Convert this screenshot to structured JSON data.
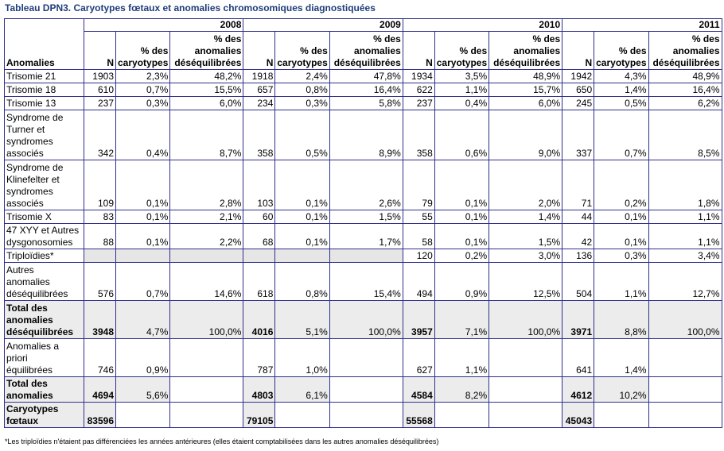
{
  "title": "Tableau DPN3. Caryotypes fœtaux et anomalies chromosomiques diagnostiquées",
  "header": {
    "anomalies": "Anomalies",
    "years": [
      "2008",
      "2009",
      "2010",
      "2011"
    ],
    "n": "N",
    "pct_caryo": [
      "% des",
      "caryotypes"
    ],
    "pct_anom": [
      "% des",
      "anomalies",
      "déséquilibrées"
    ]
  },
  "rows": [
    {
      "label": [
        "Trisomie 21"
      ],
      "bold": false,
      "cells": [
        [
          "1903",
          "2,3%",
          "48,2%"
        ],
        [
          "1918",
          "2,4%",
          "47,8%"
        ],
        [
          "1934",
          "3,5%",
          "48,9%"
        ],
        [
          "1942",
          "4,3%",
          "48,9%"
        ]
      ]
    },
    {
      "label": [
        "Trisomie 18"
      ],
      "bold": false,
      "cells": [
        [
          "610",
          "0,7%",
          "15,5%"
        ],
        [
          "657",
          "0,8%",
          "16,4%"
        ],
        [
          "622",
          "1,1%",
          "15,7%"
        ],
        [
          "650",
          "1,4%",
          "16,4%"
        ]
      ]
    },
    {
      "label": [
        "Trisomie 13"
      ],
      "bold": false,
      "cells": [
        [
          "237",
          "0,3%",
          "6,0%"
        ],
        [
          "234",
          "0,3%",
          "5,8%"
        ],
        [
          "237",
          "0,4%",
          "6,0%"
        ],
        [
          "245",
          "0,5%",
          "6,2%"
        ]
      ]
    },
    {
      "label": [
        "Syndrome de",
        "Turner et",
        "syndromes",
        "associés"
      ],
      "bold": false,
      "cells": [
        [
          "342",
          "0,4%",
          "8,7%"
        ],
        [
          "358",
          "0,5%",
          "8,9%"
        ],
        [
          "358",
          "0,6%",
          "9,0%"
        ],
        [
          "337",
          "0,7%",
          "8,5%"
        ]
      ]
    },
    {
      "label": [
        "Syndrome de",
        "Klinefelter et",
        "syndromes",
        "associés"
      ],
      "bold": false,
      "cells": [
        [
          "109",
          "0,1%",
          "2,8%"
        ],
        [
          "103",
          "0,1%",
          "2,6%"
        ],
        [
          "79",
          "0,1%",
          "2,0%"
        ],
        [
          "71",
          "0,2%",
          "1,8%"
        ]
      ]
    },
    {
      "label": [
        "Trisomie X"
      ],
      "bold": false,
      "cells": [
        [
          "83",
          "0,1%",
          "2,1%"
        ],
        [
          "60",
          "0,1%",
          "1,5%"
        ],
        [
          "55",
          "0,1%",
          "1,4%"
        ],
        [
          "44",
          "0,1%",
          "1,1%"
        ]
      ]
    },
    {
      "label": [
        "47 XYY et Autres",
        "dysgonosomies"
      ],
      "bold": false,
      "cells": [
        [
          "88",
          "0,1%",
          "2,2%"
        ],
        [
          "68",
          "0,1%",
          "1,7%"
        ],
        [
          "58",
          "0,1%",
          "1,5%"
        ],
        [
          "42",
          "0,1%",
          "1,1%"
        ]
      ]
    },
    {
      "label": [
        "Triploïdies*"
      ],
      "bold": false,
      "grey_years": [
        0,
        1
      ],
      "cells": [
        [
          "",
          "",
          ""
        ],
        [
          "",
          "",
          ""
        ],
        [
          "120",
          "0,2%",
          "3,0%"
        ],
        [
          "136",
          "0,3%",
          "3,4%"
        ]
      ]
    },
    {
      "label": [
        "Autres",
        "anomalies",
        "déséquilibrées"
      ],
      "bold": false,
      "cells": [
        [
          "576",
          "0,7%",
          "14,6%"
        ],
        [
          "618",
          "0,8%",
          "15,4%"
        ],
        [
          "494",
          "0,9%",
          "12,5%"
        ],
        [
          "504",
          "1,1%",
          "12,7%"
        ]
      ]
    },
    {
      "label": [
        "Total des",
        "anomalies",
        "déséquilibrées"
      ],
      "bold": true,
      "cells": [
        [
          "3948",
          "4,7%",
          "100,0%"
        ],
        [
          "4016",
          "5,1%",
          "100,0%"
        ],
        [
          "3957",
          "7,1%",
          "100,0%"
        ],
        [
          "3971",
          "8,8%",
          "100,0%"
        ]
      ]
    },
    {
      "label": [
        "Anomalies a",
        "priori",
        "équilibrées"
      ],
      "bold": false,
      "cells": [
        [
          "746",
          "0,9%",
          ""
        ],
        [
          "787",
          "1,0%",
          ""
        ],
        [
          "627",
          "1,1%",
          ""
        ],
        [
          "641",
          "1,4%",
          ""
        ]
      ]
    },
    {
      "label": [
        "Total des",
        "anomalies"
      ],
      "bold": true,
      "cells": [
        [
          "4694",
          "5,6%",
          ""
        ],
        [
          "4803",
          "6,1%",
          ""
        ],
        [
          "4584",
          "8,2%",
          ""
        ],
        [
          "4612",
          "10,2%",
          ""
        ]
      ]
    },
    {
      "label": [
        "Caryotypes",
        "fœtaux"
      ],
      "bold": true,
      "cells": [
        [
          "83596",
          "",
          ""
        ],
        [
          "79105",
          "",
          ""
        ],
        [
          "55568",
          "",
          ""
        ],
        [
          "45043",
          "",
          ""
        ]
      ]
    }
  ],
  "footnote": "*Les triploïdies n'étaient pas différenciées les années antérieures (elles étaient comptabilisées dans les autres anomalies déséquilibrées)"
}
